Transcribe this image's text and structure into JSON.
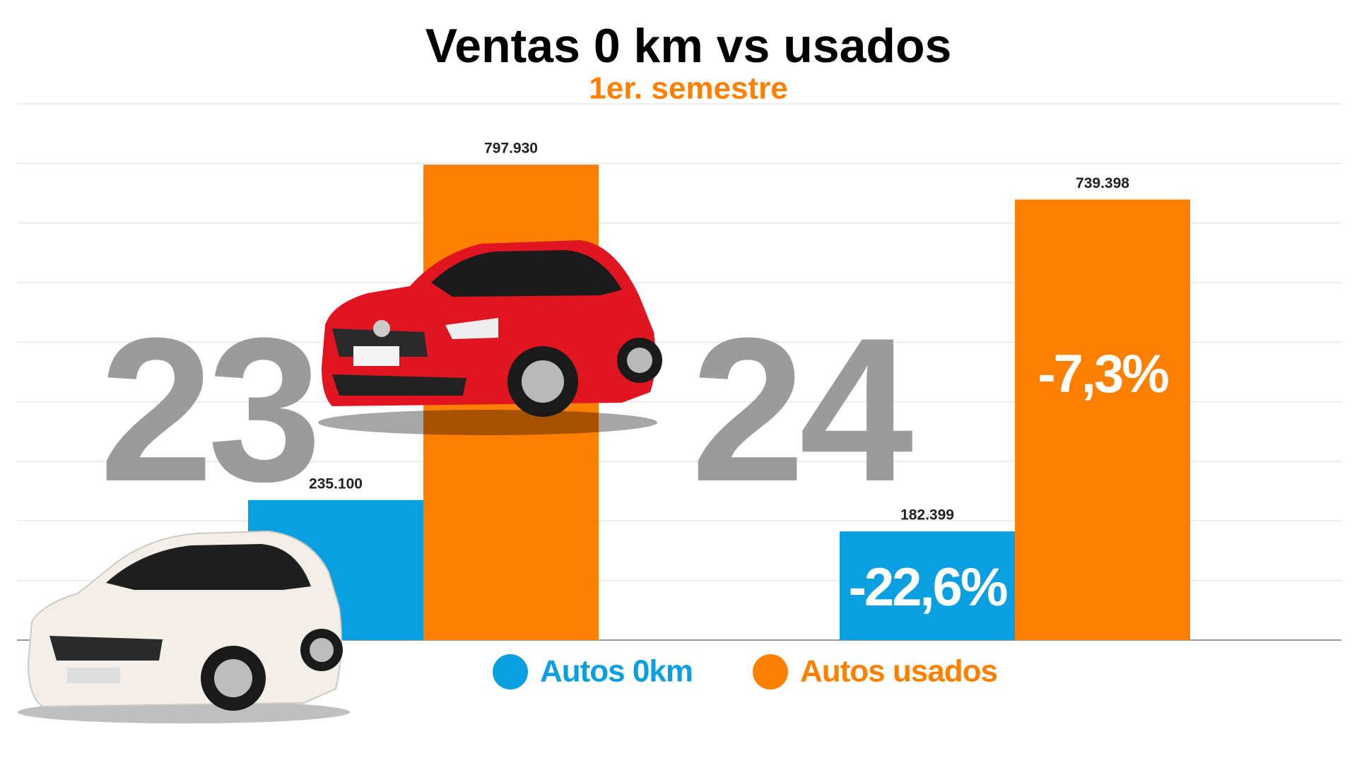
{
  "chart_data": {
    "type": "bar",
    "title": "Ventas 0 km vs usados",
    "subtitle": "1er. semestre",
    "categories": [
      "23",
      "24"
    ],
    "series": [
      {
        "name": "Autos 0km",
        "color": "#0a9fe0",
        "values": [
          235100,
          182399
        ],
        "value_labels": [
          "235.100",
          "182.399"
        ],
        "change_labels": [
          null,
          "-22,6%"
        ]
      },
      {
        "name": "Autos usados",
        "color": "#ff8000",
        "values": [
          797930,
          739398
        ],
        "value_labels": [
          "797.930",
          "739.398"
        ],
        "change_labels": [
          null,
          "-7,3%"
        ]
      }
    ],
    "ylim": [
      0,
      900000
    ],
    "yticks": [
      0,
      100000,
      200000,
      300000,
      400000,
      500000,
      600000,
      700000,
      800000,
      900000
    ],
    "grid": true,
    "legend": "bottom"
  }
}
